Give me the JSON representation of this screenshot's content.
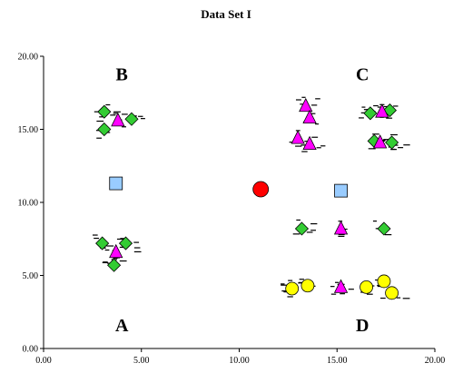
{
  "chart_data": {
    "type": "scatter",
    "title": "Data Set I",
    "xlabel": "",
    "ylabel": "",
    "xlim": [
      0,
      20
    ],
    "ylim": [
      0,
      20
    ],
    "x_ticks": [
      "0.00",
      "5.00",
      "10.00",
      "15.00",
      "20.00"
    ],
    "y_ticks": [
      "0.00",
      "5.00",
      "10.00",
      "15.00",
      "20.00"
    ],
    "grid": false,
    "legend": "none",
    "cluster_labels": [
      {
        "text": "A",
        "x": 4.0,
        "y": 1.6
      },
      {
        "text": "B",
        "x": 4.0,
        "y": 18.8
      },
      {
        "text": "C",
        "x": 16.3,
        "y": 18.8
      },
      {
        "text": "D",
        "x": 16.3,
        "y": 1.6
      }
    ],
    "series": [
      {
        "marker": "diamond",
        "color": "#33cc33",
        "points": [
          [
            3.1,
            16.2
          ],
          [
            3.1,
            15.0
          ],
          [
            4.5,
            15.7
          ],
          [
            3.0,
            7.2
          ],
          [
            4.2,
            7.2
          ],
          [
            3.6,
            5.7
          ],
          [
            13.2,
            8.2
          ],
          [
            17.4,
            8.2
          ],
          [
            16.7,
            16.1
          ],
          [
            17.7,
            16.3
          ],
          [
            16.9,
            14.2
          ],
          [
            17.8,
            14.1
          ]
        ]
      },
      {
        "marker": "triangle",
        "color": "#ff00ff",
        "points": [
          [
            3.8,
            15.6
          ],
          [
            3.7,
            6.6
          ],
          [
            13.4,
            16.6
          ],
          [
            13.6,
            15.8
          ],
          [
            13.0,
            14.4
          ],
          [
            13.6,
            14.0
          ],
          [
            15.2,
            8.2
          ],
          [
            15.2,
            4.2
          ],
          [
            17.3,
            16.2
          ],
          [
            17.2,
            14.1
          ]
        ]
      },
      {
        "marker": "circle",
        "color": "#ffff00",
        "points": [
          [
            12.7,
            4.1
          ],
          [
            13.5,
            4.3
          ],
          [
            16.5,
            4.2
          ],
          [
            17.4,
            4.6
          ],
          [
            17.8,
            3.8
          ]
        ]
      },
      {
        "marker": "circle-large",
        "color": "#ff0000",
        "points": [
          [
            11.1,
            10.9
          ]
        ]
      },
      {
        "marker": "square",
        "color": "#99ccff",
        "points": [
          [
            3.7,
            11.3
          ],
          [
            15.2,
            10.8
          ]
        ]
      }
    ]
  }
}
